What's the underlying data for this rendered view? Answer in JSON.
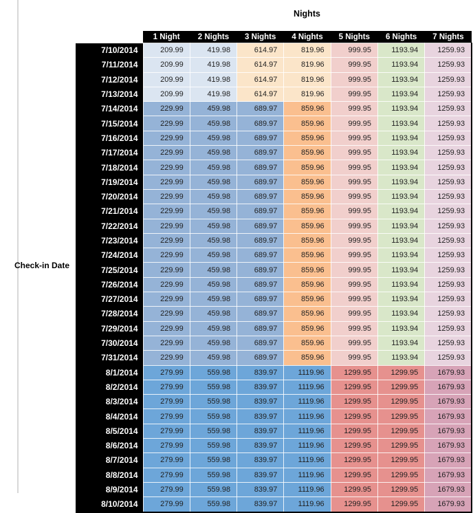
{
  "chart_data": {
    "type": "table",
    "title": "Nights",
    "row_axis_label": "Check-in Date",
    "columns": [
      "1 Night",
      "2 Nights",
      "3 Nights",
      "4 Nights",
      "5 Nights",
      "6 Nights",
      "7 Nights"
    ],
    "group_colors": {
      "A": [
        "#dbe5f1",
        "#dbe5f1",
        "#fbe5c9",
        "#fbe5c9",
        "#f1cfcc",
        "#d9e7c9",
        "#e8d4df"
      ],
      "B": [
        "#95b3d7",
        "#95b3d7",
        "#95b3d7",
        "#fabf8f",
        "#f1cfcc",
        "#d9e7c9",
        "#e8d4df"
      ],
      "C": [
        "#6da6d9",
        "#6da6d9",
        "#6da6d9",
        "#6da6d9",
        "#e6918e",
        "#e6918e",
        "#d7a3b7"
      ]
    },
    "rows": [
      {
        "date": "7/10/2014",
        "group": "A",
        "values": [
          "209.99",
          "419.98",
          "614.97",
          "819.96",
          "999.95",
          "1193.94",
          "1259.93"
        ]
      },
      {
        "date": "7/11/2014",
        "group": "A",
        "values": [
          "209.99",
          "419.98",
          "614.97",
          "819.96",
          "999.95",
          "1193.94",
          "1259.93"
        ]
      },
      {
        "date": "7/12/2014",
        "group": "A",
        "values": [
          "209.99",
          "419.98",
          "614.97",
          "819.96",
          "999.95",
          "1193.94",
          "1259.93"
        ]
      },
      {
        "date": "7/13/2014",
        "group": "A",
        "values": [
          "209.99",
          "419.98",
          "614.97",
          "819.96",
          "999.95",
          "1193.94",
          "1259.93"
        ]
      },
      {
        "date": "7/14/2014",
        "group": "B",
        "values": [
          "229.99",
          "459.98",
          "689.97",
          "859.96",
          "999.95",
          "1193.94",
          "1259.93"
        ]
      },
      {
        "date": "7/15/2014",
        "group": "B",
        "values": [
          "229.99",
          "459.98",
          "689.97",
          "859.96",
          "999.95",
          "1193.94",
          "1259.93"
        ]
      },
      {
        "date": "7/16/2014",
        "group": "B",
        "values": [
          "229.99",
          "459.98",
          "689.97",
          "859.96",
          "999.95",
          "1193.94",
          "1259.93"
        ]
      },
      {
        "date": "7/17/2014",
        "group": "B",
        "values": [
          "229.99",
          "459.98",
          "689.97",
          "859.96",
          "999.95",
          "1193.94",
          "1259.93"
        ]
      },
      {
        "date": "7/18/2014",
        "group": "B",
        "values": [
          "229.99",
          "459.98",
          "689.97",
          "859.96",
          "999.95",
          "1193.94",
          "1259.93"
        ]
      },
      {
        "date": "7/19/2014",
        "group": "B",
        "values": [
          "229.99",
          "459.98",
          "689.97",
          "859.96",
          "999.95",
          "1193.94",
          "1259.93"
        ]
      },
      {
        "date": "7/20/2014",
        "group": "B",
        "values": [
          "229.99",
          "459.98",
          "689.97",
          "859.96",
          "999.95",
          "1193.94",
          "1259.93"
        ]
      },
      {
        "date": "7/21/2014",
        "group": "B",
        "values": [
          "229.99",
          "459.98",
          "689.97",
          "859.96",
          "999.95",
          "1193.94",
          "1259.93"
        ]
      },
      {
        "date": "7/22/2014",
        "group": "B",
        "values": [
          "229.99",
          "459.98",
          "689.97",
          "859.96",
          "999.95",
          "1193.94",
          "1259.93"
        ]
      },
      {
        "date": "7/23/2014",
        "group": "B",
        "values": [
          "229.99",
          "459.98",
          "689.97",
          "859.96",
          "999.95",
          "1193.94",
          "1259.93"
        ]
      },
      {
        "date": "7/24/2014",
        "group": "B",
        "values": [
          "229.99",
          "459.98",
          "689.97",
          "859.96",
          "999.95",
          "1193.94",
          "1259.93"
        ]
      },
      {
        "date": "7/25/2014",
        "group": "B",
        "values": [
          "229.99",
          "459.98",
          "689.97",
          "859.96",
          "999.95",
          "1193.94",
          "1259.93"
        ]
      },
      {
        "date": "7/26/2014",
        "group": "B",
        "values": [
          "229.99",
          "459.98",
          "689.97",
          "859.96",
          "999.95",
          "1193.94",
          "1259.93"
        ]
      },
      {
        "date": "7/27/2014",
        "group": "B",
        "values": [
          "229.99",
          "459.98",
          "689.97",
          "859.96",
          "999.95",
          "1193.94",
          "1259.93"
        ]
      },
      {
        "date": "7/28/2014",
        "group": "B",
        "values": [
          "229.99",
          "459.98",
          "689.97",
          "859.96",
          "999.95",
          "1193.94",
          "1259.93"
        ]
      },
      {
        "date": "7/29/2014",
        "group": "B",
        "values": [
          "229.99",
          "459.98",
          "689.97",
          "859.96",
          "999.95",
          "1193.94",
          "1259.93"
        ]
      },
      {
        "date": "7/30/2014",
        "group": "B",
        "values": [
          "229.99",
          "459.98",
          "689.97",
          "859.96",
          "999.95",
          "1193.94",
          "1259.93"
        ]
      },
      {
        "date": "7/31/2014",
        "group": "B",
        "values": [
          "229.99",
          "459.98",
          "689.97",
          "859.96",
          "999.95",
          "1193.94",
          "1259.93"
        ]
      },
      {
        "date": "8/1/2014",
        "group": "C",
        "values": [
          "279.99",
          "559.98",
          "839.97",
          "1119.96",
          "1299.95",
          "1299.95",
          "1679.93"
        ]
      },
      {
        "date": "8/2/2014",
        "group": "C",
        "values": [
          "279.99",
          "559.98",
          "839.97",
          "1119.96",
          "1299.95",
          "1299.95",
          "1679.93"
        ]
      },
      {
        "date": "8/3/2014",
        "group": "C",
        "values": [
          "279.99",
          "559.98",
          "839.97",
          "1119.96",
          "1299.95",
          "1299.95",
          "1679.93"
        ]
      },
      {
        "date": "8/4/2014",
        "group": "C",
        "values": [
          "279.99",
          "559.98",
          "839.97",
          "1119.96",
          "1299.95",
          "1299.95",
          "1679.93"
        ]
      },
      {
        "date": "8/5/2014",
        "group": "C",
        "values": [
          "279.99",
          "559.98",
          "839.97",
          "1119.96",
          "1299.95",
          "1299.95",
          "1679.93"
        ]
      },
      {
        "date": "8/6/2014",
        "group": "C",
        "values": [
          "279.99",
          "559.98",
          "839.97",
          "1119.96",
          "1299.95",
          "1299.95",
          "1679.93"
        ]
      },
      {
        "date": "8/7/2014",
        "group": "C",
        "values": [
          "279.99",
          "559.98",
          "839.97",
          "1119.96",
          "1299.95",
          "1299.95",
          "1679.93"
        ]
      },
      {
        "date": "8/8/2014",
        "group": "C",
        "values": [
          "279.99",
          "559.98",
          "839.97",
          "1119.96",
          "1299.95",
          "1299.95",
          "1679.93"
        ]
      },
      {
        "date": "8/9/2014",
        "group": "C",
        "values": [
          "279.99",
          "559.98",
          "839.97",
          "1119.96",
          "1299.95",
          "1299.95",
          "1679.93"
        ]
      },
      {
        "date": "8/10/2014",
        "group": "C",
        "values": [
          "279.99",
          "559.98",
          "839.97",
          "1119.96",
          "1299.95",
          "1299.95",
          "1679.93"
        ]
      }
    ],
    "header_bg": "#000000",
    "header_text_color": "#ffffff",
    "layout": {
      "grid": "white 1px gridlines",
      "legend": "none"
    }
  }
}
